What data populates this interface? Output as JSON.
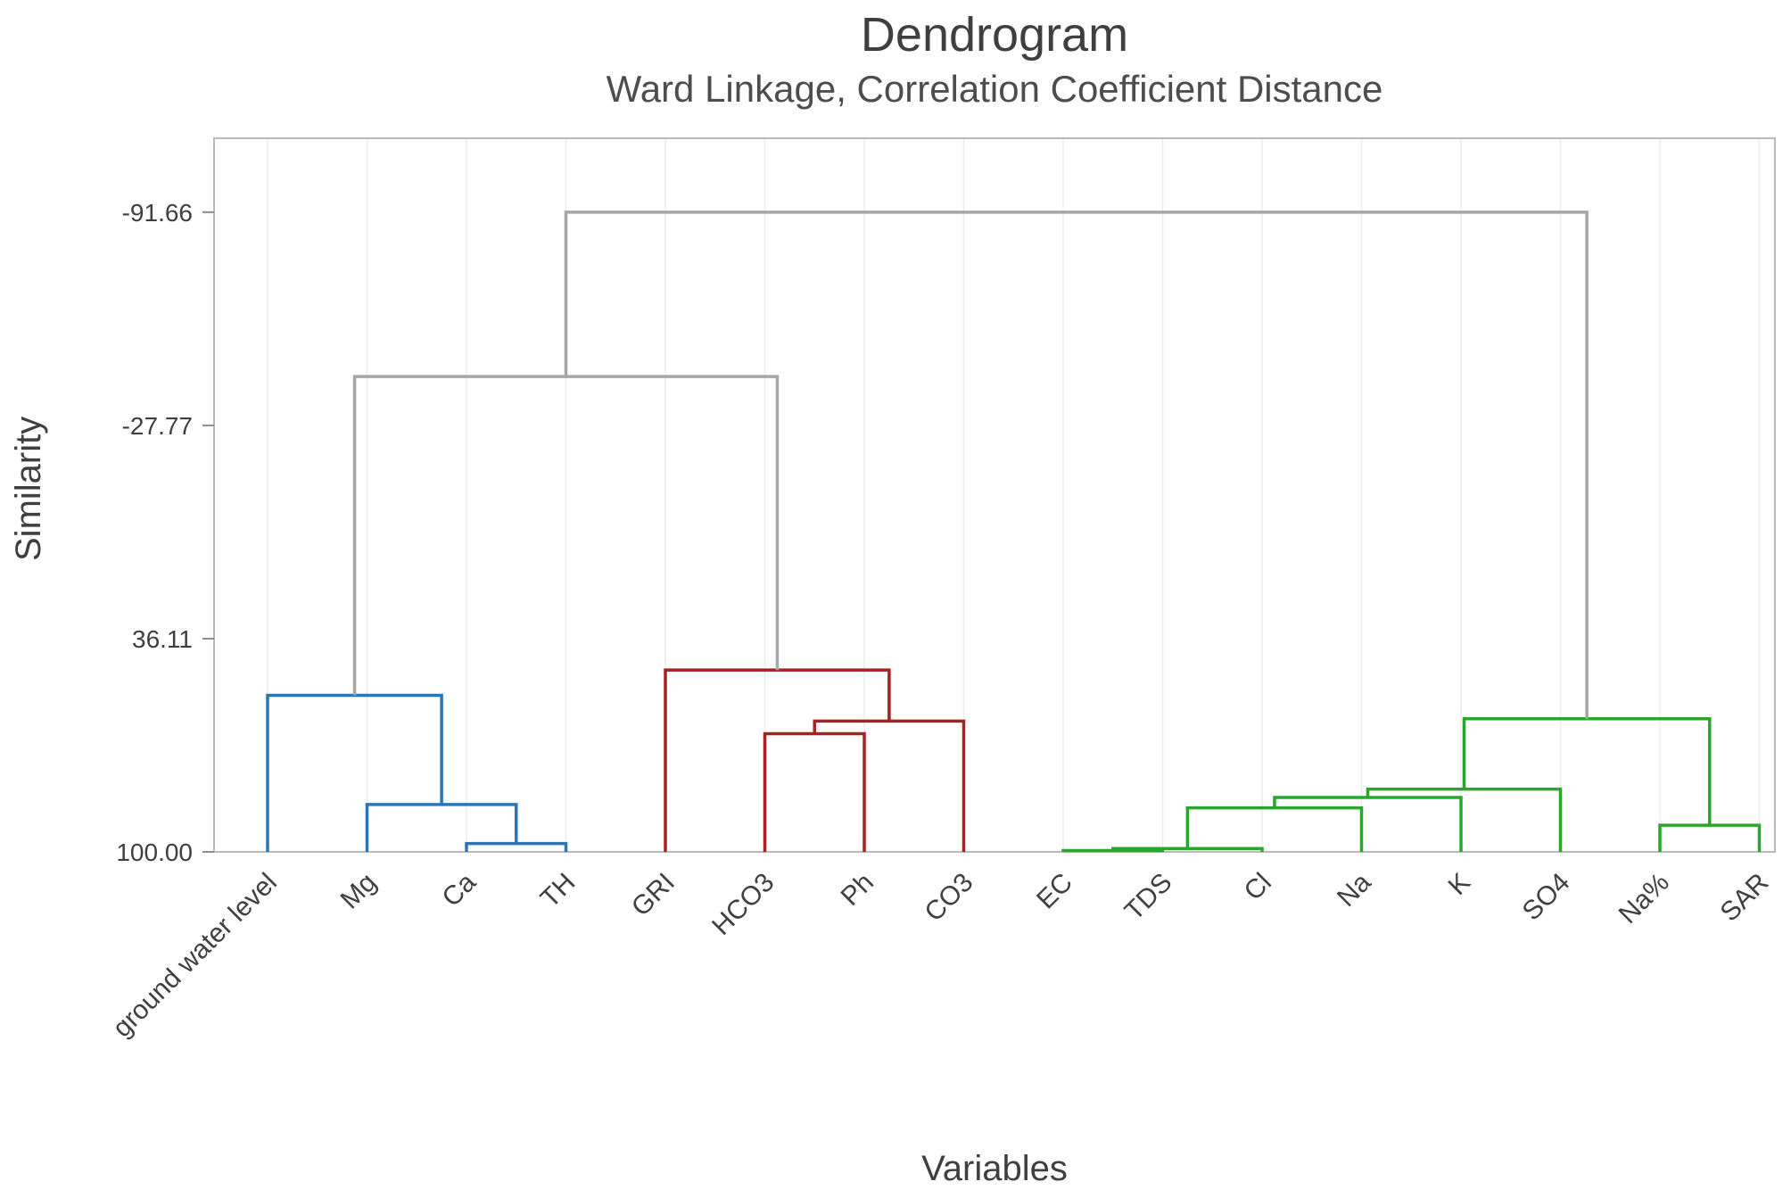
{
  "chart_data": {
    "type": "dendrogram",
    "title": "Dendrogram",
    "subtitle": "Ward Linkage, Correlation Coefficient Distance",
    "ylabel": "Similarity",
    "xlabel": "Variables",
    "grid": "faint vertical gridlines at each leaf",
    "y_axis": {
      "inverted": true,
      "ticks": [
        {
          "label": "-91.66",
          "value": -91.66
        },
        {
          "label": "-27.77",
          "value": -27.77
        },
        {
          "label": "36.11",
          "value": 36.11
        },
        {
          "label": "100.00",
          "value": 100
        }
      ],
      "top_value": -113.8,
      "bottom_value": 100
    },
    "leaves": [
      "ground water level",
      "Mg",
      "Ca",
      "TH",
      "GRI",
      "HCO3",
      "Ph",
      "CO3",
      "EC",
      "TDS",
      "Cl",
      "Na",
      "K",
      "SO4",
      "Na%",
      "SAR"
    ],
    "colors": {
      "link": "#A6A6A6",
      "cluster1": "#2E75B6",
      "cluster2": "#A62126",
      "cluster3": "#2CA52C"
    },
    "merges": [
      {
        "a": "L2",
        "b": "L3",
        "similarity": 97.5,
        "color": "cluster1"
      },
      {
        "a": "L1",
        "b": "M0",
        "similarity": 85.8,
        "color": "cluster1"
      },
      {
        "a": "L0",
        "b": "M1",
        "similarity": 53.1,
        "color": "cluster1"
      },
      {
        "a": "L5",
        "b": "L6",
        "similarity": 64.6,
        "color": "cluster2"
      },
      {
        "a": "M3",
        "b": "L7",
        "similarity": 60.8,
        "color": "cluster2"
      },
      {
        "a": "L4",
        "b": "M4",
        "similarity": 45.5,
        "color": "cluster2"
      },
      {
        "a": "L8",
        "b": "L9",
        "similarity": 99.6,
        "color": "cluster3"
      },
      {
        "a": "M6",
        "b": "L10",
        "similarity": 99.0,
        "color": "cluster3"
      },
      {
        "a": "M7",
        "b": "L11",
        "similarity": 86.8,
        "color": "cluster3"
      },
      {
        "a": "M8",
        "b": "L12",
        "similarity": 83.7,
        "color": "cluster3"
      },
      {
        "a": "M9",
        "b": "L13",
        "similarity": 81.2,
        "color": "cluster3"
      },
      {
        "a": "L14",
        "b": "L15",
        "similarity": 92.0,
        "color": "cluster3"
      },
      {
        "a": "M10",
        "b": "M11",
        "similarity": 60.1,
        "color": "cluster3"
      },
      {
        "a": "M2",
        "b": "M5",
        "similarity": -42.4,
        "color": "link"
      },
      {
        "a": "M13",
        "b": "M12",
        "similarity": -91.66,
        "color": "link"
      }
    ]
  }
}
